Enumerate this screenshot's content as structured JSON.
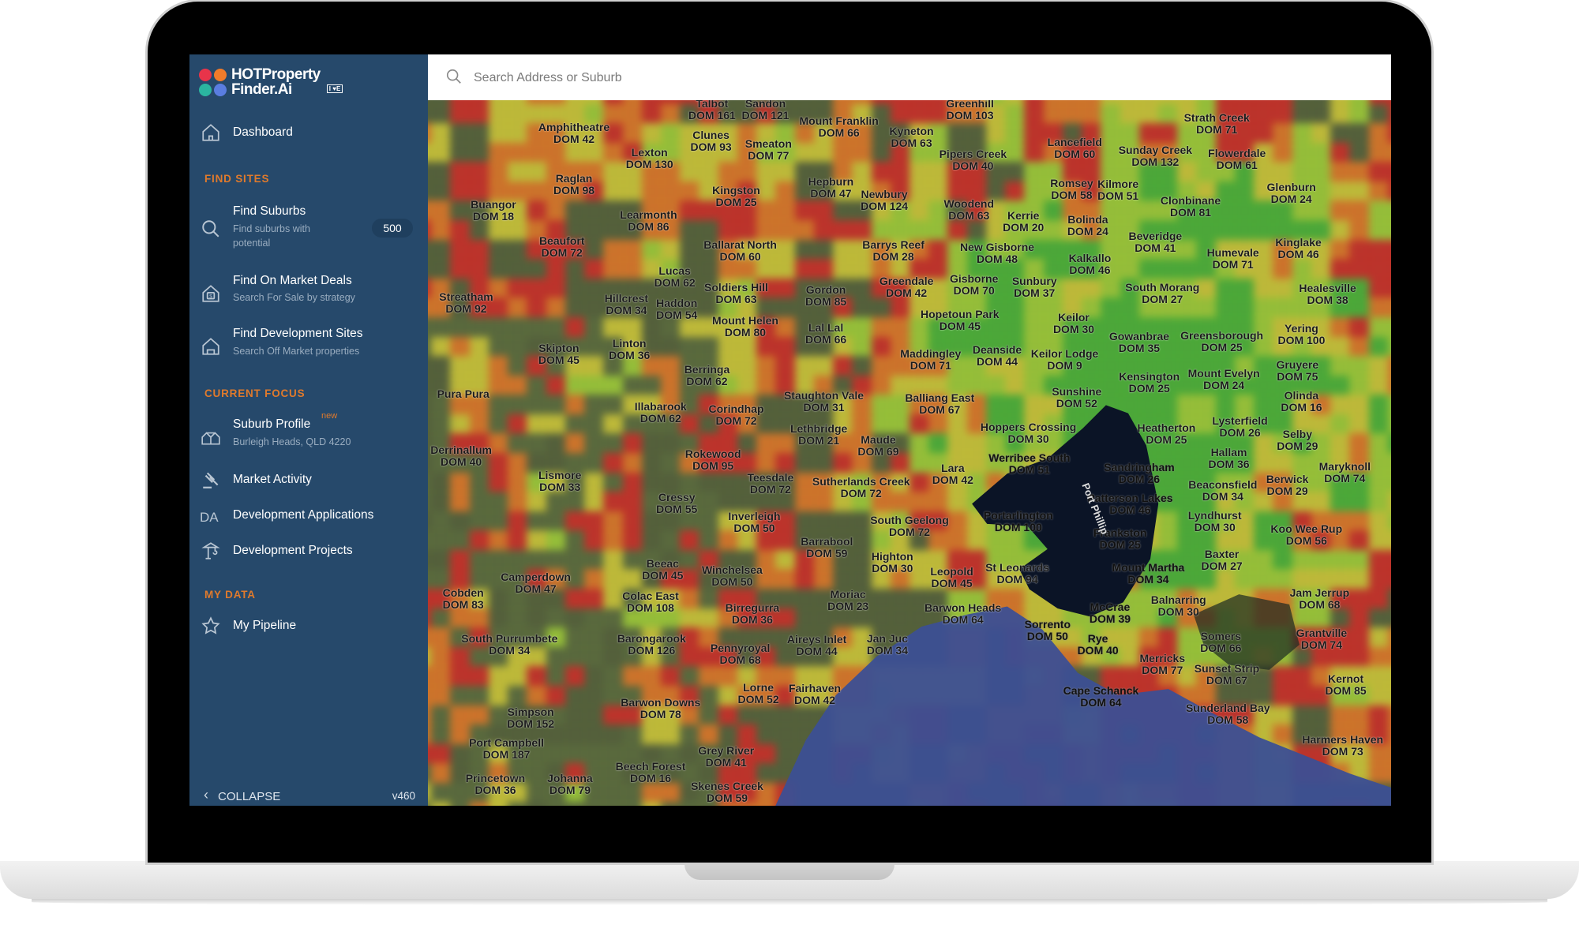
{
  "app": {
    "logo_line1": "HOTProperty",
    "logo_line2": "Finder.Ai",
    "logo_badge": "I LOVE REAL ESTATE",
    "accent_color": "#e07a2c",
    "sidebar_color": "#26496b"
  },
  "search": {
    "placeholder": "Search Address or Suburb",
    "value": "",
    "icon": "search-icon"
  },
  "sidebar": {
    "dashboard": {
      "label": "Dashboard",
      "icon": "home-icon"
    },
    "find_sites_heading": "FIND SITES",
    "find_suburbs": {
      "label": "Find Suburbs",
      "sub": "Find suburbs with potential",
      "badge": "500",
      "icon": "search-icon"
    },
    "find_deals": {
      "label": "Find On Market Deals",
      "sub": "Search For Sale by strategy",
      "icon": "house-dollar-icon"
    },
    "find_dev_sites": {
      "label": "Find Development Sites",
      "sub": "Search Off Market properties",
      "icon": "home-icon"
    },
    "current_focus_heading": "CURRENT FOCUS",
    "suburb_profile": {
      "label": "Suburb Profile",
      "badge": "new",
      "sub": "Burleigh Heads, QLD 4220",
      "icon": "houses-icon"
    },
    "market_activity": {
      "label": "Market Activity",
      "icon": "gavel-icon"
    },
    "dev_applications": {
      "label": "Development Applications",
      "icon_text": "DA"
    },
    "dev_projects": {
      "label": "Development Projects",
      "icon": "crane-icon"
    },
    "my_data_heading": "MY DATA",
    "my_pipeline": {
      "label": "My Pipeline",
      "icon": "star-icon"
    },
    "collapse": "COLLAPSE",
    "version": "v460"
  },
  "map": {
    "water_label": "Port Phillip",
    "colors": {
      "red": "#c8302a",
      "orange": "#d9752a",
      "yellow": "#c9c23a",
      "lime": "#9cc83a",
      "green": "#4caf3a",
      "water": "#0b1426",
      "ocean": "#3c4f94"
    },
    "suburbs": [
      {
        "name": "Talbot",
        "dom": "DOM 161"
      },
      {
        "name": "Sandon",
        "dom": "DOM 121"
      },
      {
        "name": "Mount Franklin",
        "dom": "DOM 66"
      },
      {
        "name": "Kyneton",
        "dom": "DOM 63"
      },
      {
        "name": "Greenhill",
        "dom": "DOM 103"
      },
      {
        "name": "Amphitheatre",
        "dom": "DOM 42"
      },
      {
        "name": "Clunes",
        "dom": "DOM 93"
      },
      {
        "name": "Smeaton",
        "dom": "DOM 77"
      },
      {
        "name": "Lexton",
        "dom": "DOM 130"
      },
      {
        "name": "Pipers Creek",
        "dom": "DOM 40"
      },
      {
        "name": "Lancefield",
        "dom": "DOM 60"
      },
      {
        "name": "Sunday Creek",
        "dom": "DOM 132"
      },
      {
        "name": "Strath Creek",
        "dom": "DOM 71"
      },
      {
        "name": "Flowerdale",
        "dom": "DOM 61"
      },
      {
        "name": "Raglan",
        "dom": "DOM 98"
      },
      {
        "name": "Hepburn",
        "dom": "DOM 47"
      },
      {
        "name": "Newbury",
        "dom": "DOM 124"
      },
      {
        "name": "Kingston",
        "dom": "DOM 25"
      },
      {
        "name": "Woodend",
        "dom": "DOM 63"
      },
      {
        "name": "Romsey",
        "dom": "DOM 58"
      },
      {
        "name": "Kilmore",
        "dom": "DOM 51"
      },
      {
        "name": "Clonbinane",
        "dom": "DOM 81"
      },
      {
        "name": "Glenburn",
        "dom": "DOM 24"
      },
      {
        "name": "Buangor",
        "dom": "DOM 18"
      },
      {
        "name": "Learmonth",
        "dom": "DOM 86"
      },
      {
        "name": "Kerrie",
        "dom": "DOM 20"
      },
      {
        "name": "Bolinda",
        "dom": "DOM 24"
      },
      {
        "name": "Beaufort",
        "dom": "DOM 72"
      },
      {
        "name": "Ballarat North",
        "dom": "DOM 60"
      },
      {
        "name": "Barrys Reef",
        "dom": "DOM 28"
      },
      {
        "name": "New Gisborne",
        "dom": "DOM 48"
      },
      {
        "name": "Beveridge",
        "dom": "DOM 41"
      },
      {
        "name": "Humevale",
        "dom": "DOM 71"
      },
      {
        "name": "Kinglake",
        "dom": "DOM 46"
      },
      {
        "name": "Kalkallo",
        "dom": "DOM 46"
      },
      {
        "name": "Lucas",
        "dom": "DOM 62"
      },
      {
        "name": "Soldiers Hill",
        "dom": "DOM 63"
      },
      {
        "name": "Gordon",
        "dom": "DOM 85"
      },
      {
        "name": "Greendale",
        "dom": "DOM 42"
      },
      {
        "name": "Gisborne",
        "dom": "DOM 70"
      },
      {
        "name": "Sunbury",
        "dom": "DOM 37"
      },
      {
        "name": "South Morang",
        "dom": "DOM 27"
      },
      {
        "name": "Healesville",
        "dom": "DOM 38"
      },
      {
        "name": "Streatham",
        "dom": "DOM 92"
      },
      {
        "name": "Hillcrest",
        "dom": "DOM 34"
      },
      {
        "name": "Haddon",
        "dom": "DOM 54"
      },
      {
        "name": "Mount Helen",
        "dom": "DOM 80"
      },
      {
        "name": "Hopetoun Park",
        "dom": "DOM 45"
      },
      {
        "name": "Keilor",
        "dom": "DOM 30"
      },
      {
        "name": "Lal Lal",
        "dom": "DOM 66"
      },
      {
        "name": "Skipton",
        "dom": "DOM 45"
      },
      {
        "name": "Linton",
        "dom": "DOM 36"
      },
      {
        "name": "Gowanbrae",
        "dom": "DOM 35"
      },
      {
        "name": "Greensborough",
        "dom": "DOM 25"
      },
      {
        "name": "Yering",
        "dom": "DOM 100"
      },
      {
        "name": "Maddingley",
        "dom": "DOM 71"
      },
      {
        "name": "Deanside",
        "dom": "DOM 44"
      },
      {
        "name": "Keilor Lodge",
        "dom": "DOM 9"
      },
      {
        "name": "Berringa",
        "dom": "DOM 62"
      },
      {
        "name": "Kensington",
        "dom": "DOM 25"
      },
      {
        "name": "Mount Evelyn",
        "dom": "DOM 24"
      },
      {
        "name": "Gruyere",
        "dom": "DOM 75"
      },
      {
        "name": "Pura Pura",
        "dom": ""
      },
      {
        "name": "Staughton Vale",
        "dom": "DOM 31"
      },
      {
        "name": "Sunshine",
        "dom": "DOM 52"
      },
      {
        "name": "Olinda",
        "dom": "DOM 16"
      },
      {
        "name": "Illabarook",
        "dom": "DOM 62"
      },
      {
        "name": "Corindhap",
        "dom": "DOM 72"
      },
      {
        "name": "Balliang East",
        "dom": "DOM 67"
      },
      {
        "name": "Heatherton",
        "dom": "DOM 25"
      },
      {
        "name": "Lysterfield",
        "dom": "DOM 26"
      },
      {
        "name": "Hoppers Crossing",
        "dom": "DOM 30"
      },
      {
        "name": "Lethbridge",
        "dom": "DOM 21"
      },
      {
        "name": "Maude",
        "dom": "DOM 69"
      },
      {
        "name": "Selby",
        "dom": "DOM 29"
      },
      {
        "name": "Derrinallum",
        "dom": "DOM 40"
      },
      {
        "name": "Rokewood",
        "dom": "DOM 95"
      },
      {
        "name": "Hallam",
        "dom": "DOM 36"
      },
      {
        "name": "Werribee South",
        "dom": "DOM 51"
      },
      {
        "name": "Sandringham",
        "dom": "DOM 26"
      },
      {
        "name": "Lismore",
        "dom": "DOM 33"
      },
      {
        "name": "Teesdale",
        "dom": "DOM 72"
      },
      {
        "name": "Lara",
        "dom": "DOM 42"
      },
      {
        "name": "Sutherlands Creek",
        "dom": "DOM 72"
      },
      {
        "name": "Berwick",
        "dom": "DOM 29"
      },
      {
        "name": "Maryknoll",
        "dom": "DOM 74"
      },
      {
        "name": "Beaconsfield",
        "dom": "DOM 34"
      },
      {
        "name": "Patterson Lakes",
        "dom": "DOM 46"
      },
      {
        "name": "Cressy",
        "dom": "DOM 55"
      },
      {
        "name": "Inverleigh",
        "dom": "DOM 50"
      },
      {
        "name": "South Geelong",
        "dom": "DOM 72"
      },
      {
        "name": "Portarlington",
        "dom": "DOM 100"
      },
      {
        "name": "Lyndhurst",
        "dom": "DOM 30"
      },
      {
        "name": "Frankston",
        "dom": "DOM 25"
      },
      {
        "name": "Koo Wee Rup",
        "dom": "DOM 56"
      },
      {
        "name": "Barrabool",
        "dom": "DOM 59"
      },
      {
        "name": "Highton",
        "dom": "DOM 30"
      },
      {
        "name": "Baxter",
        "dom": "DOM 27"
      },
      {
        "name": "Beeac",
        "dom": "DOM 45"
      },
      {
        "name": "Winchelsea",
        "dom": "DOM 50"
      },
      {
        "name": "Leopold",
        "dom": "DOM 45"
      },
      {
        "name": "St Leonards",
        "dom": "DOM 94"
      },
      {
        "name": "Mount Martha",
        "dom": "DOM 34"
      },
      {
        "name": "Camperdown",
        "dom": "DOM 47"
      },
      {
        "name": "Cobden",
        "dom": "DOM 83"
      },
      {
        "name": "Colac East",
        "dom": "DOM 108"
      },
      {
        "name": "Moriac",
        "dom": "DOM 23"
      },
      {
        "name": "Jam Jerrup",
        "dom": "DOM 68"
      },
      {
        "name": "Balnarring",
        "dom": "DOM 30"
      },
      {
        "name": "Birregurra",
        "dom": "DOM 36"
      },
      {
        "name": "Barwon Heads",
        "dom": "DOM 64"
      },
      {
        "name": "McCrae",
        "dom": "DOM 39"
      },
      {
        "name": "Sorrento",
        "dom": "DOM 50"
      },
      {
        "name": "Rye",
        "dom": "DOM 40"
      },
      {
        "name": "Somers",
        "dom": "DOM 66"
      },
      {
        "name": "Grantville",
        "dom": "DOM 74"
      },
      {
        "name": "South Purrumbete",
        "dom": "DOM 34"
      },
      {
        "name": "Barongarook",
        "dom": "DOM 126"
      },
      {
        "name": "Aireys Inlet",
        "dom": "DOM 44"
      },
      {
        "name": "Jan Juc",
        "dom": "DOM 34"
      },
      {
        "name": "Pennyroyal",
        "dom": "DOM 68"
      },
      {
        "name": "Merricks",
        "dom": "DOM 77"
      },
      {
        "name": "Sunset Strip",
        "dom": "DOM 67"
      },
      {
        "name": "Kernot",
        "dom": "DOM 85"
      },
      {
        "name": "Cape Schanck",
        "dom": "DOM 64"
      },
      {
        "name": "Fairhaven",
        "dom": "DOM 42"
      },
      {
        "name": "Lorne",
        "dom": "DOM 52"
      },
      {
        "name": "Barwon Downs",
        "dom": "DOM 78"
      },
      {
        "name": "Simpson",
        "dom": "DOM 152"
      },
      {
        "name": "Sunderland Bay",
        "dom": "DOM 58"
      },
      {
        "name": "Port Campbell",
        "dom": "DOM 187"
      },
      {
        "name": "Harmers Haven",
        "dom": "DOM 73"
      },
      {
        "name": "Grey River",
        "dom": "DOM 41"
      },
      {
        "name": "Beech Forest",
        "dom": "DOM 16"
      },
      {
        "name": "Princetown",
        "dom": "DOM 36"
      },
      {
        "name": "Johanna",
        "dom": "DOM 79"
      },
      {
        "name": "Skenes Creek",
        "dom": "DOM 59"
      }
    ]
  }
}
